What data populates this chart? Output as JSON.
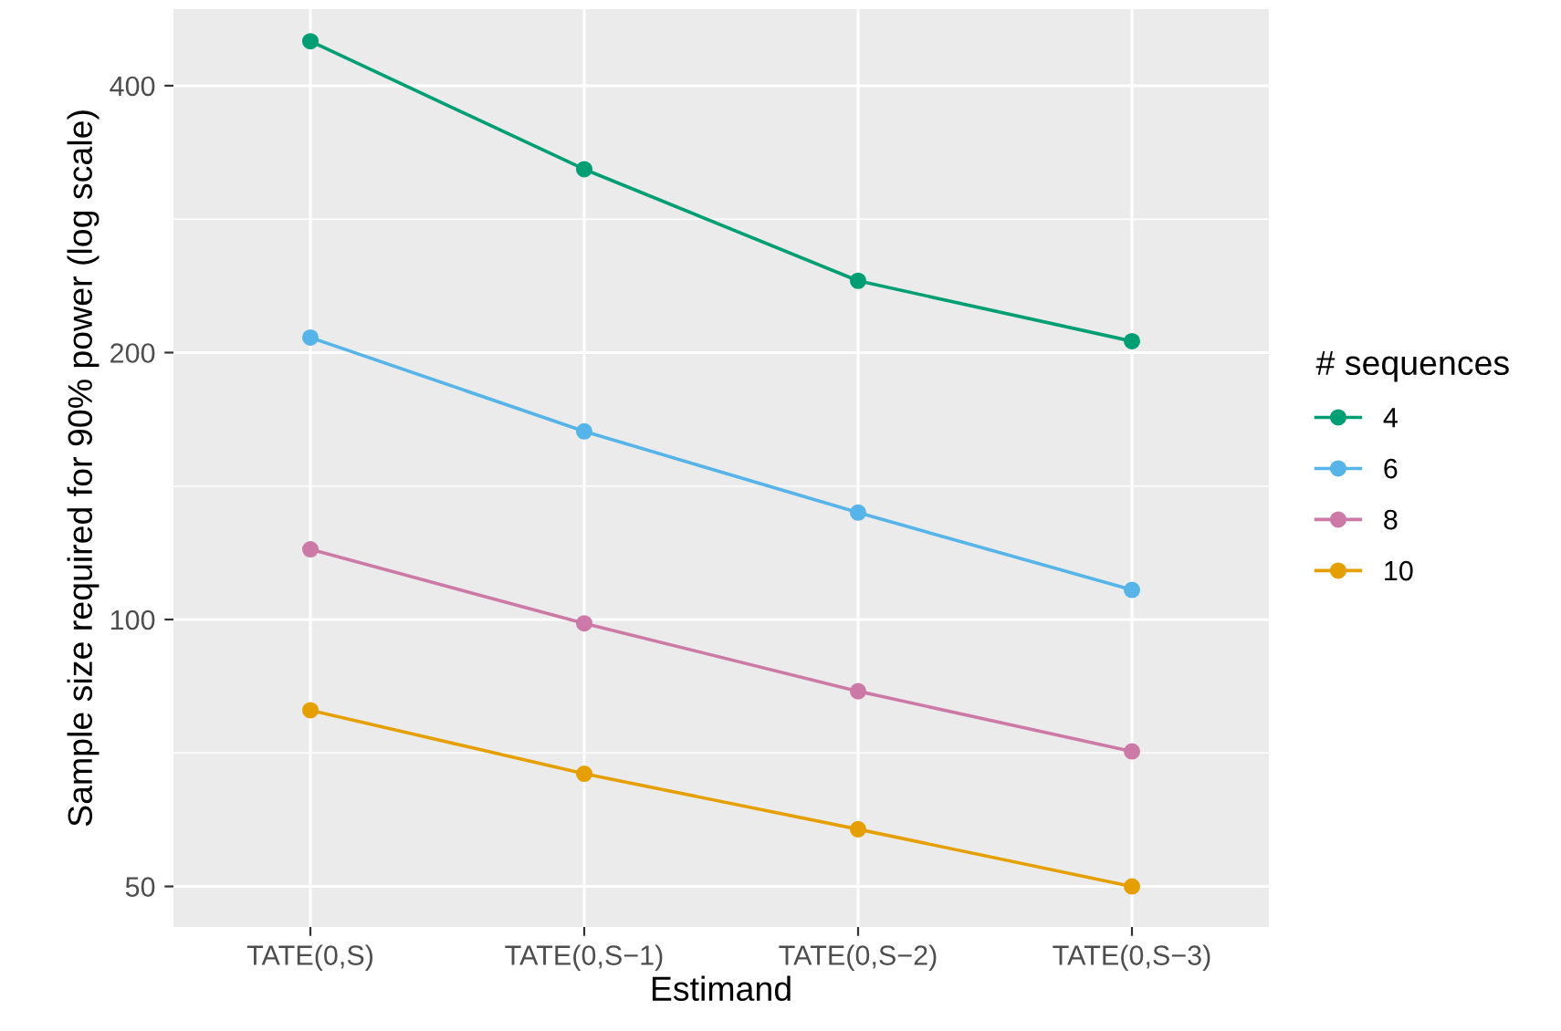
{
  "chart_data": {
    "type": "line",
    "xlabel": "Estimand",
    "ylabel": "Sample size required for 90% power (log scale)",
    "legend_title": "# sequences",
    "categories": [
      "TATE(0,S)",
      "TATE(0,S−1)",
      "TATE(0,S−2)",
      "TATE(0,S−3)"
    ],
    "series": [
      {
        "name": "4",
        "color": "#009e73",
        "values": [
          449,
          322,
          241,
          206
        ]
      },
      {
        "name": "6",
        "color": "#56b4e9",
        "values": [
          208,
          163,
          132,
          108
        ]
      },
      {
        "name": "8",
        "color": "#cc79a7",
        "values": [
          120,
          99,
          83,
          71
        ]
      },
      {
        "name": "10",
        "color": "#e69f00",
        "values": [
          79,
          67,
          58,
          50
        ]
      }
    ],
    "log": "y",
    "ylim": [
      45,
      488
    ],
    "yticks": [
      50,
      100,
      200,
      400
    ],
    "grid": true,
    "legend": "right",
    "marker": "circle",
    "line_style": "solid"
  }
}
